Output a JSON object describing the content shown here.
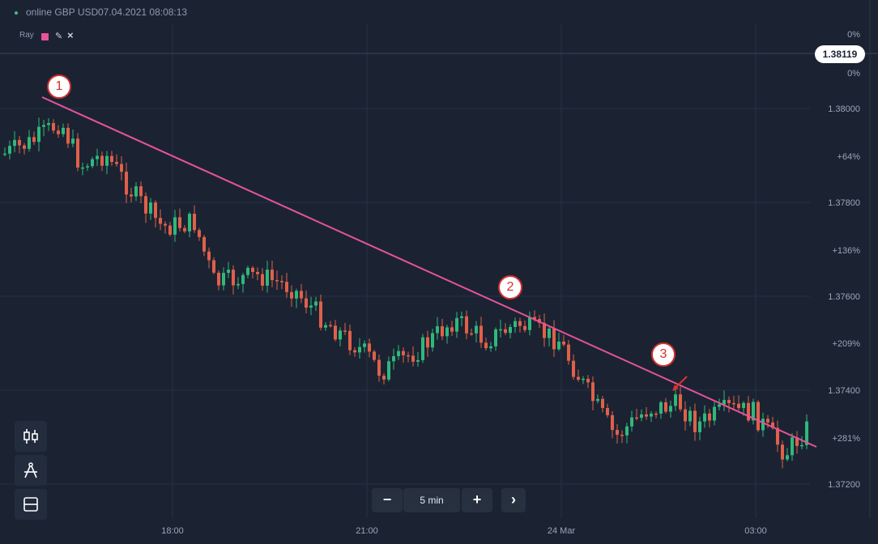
{
  "header": {
    "asset": "online GBP USD",
    "timestamp": "07.04.2021 08:08:13"
  },
  "drawing_tool": {
    "label": "Ray",
    "color": "#e7539a"
  },
  "price_axis": {
    "labels": [
      "0%",
      "0%",
      "1.38000",
      "+64%",
      "1.37800",
      "+136%",
      "1.37600",
      "+209%",
      "1.37400",
      "+281%",
      "1.37200"
    ],
    "current_price": "1.38119"
  },
  "time_axis": {
    "labels": [
      "18:00",
      "21:00",
      "24 Mar",
      "03:00"
    ]
  },
  "timeframe": {
    "minus": "−",
    "label": "5 min",
    "plus": "+",
    "next": "›"
  },
  "annotations": [
    "1",
    "2",
    "3"
  ],
  "colors": {
    "up": "#2fb87c",
    "down": "#e0604a",
    "ray": "#e7539a",
    "background": "#1b2332"
  },
  "sidebar_tools": [
    "candlestick-icon",
    "compass-draw-icon",
    "layout-icon"
  ]
}
